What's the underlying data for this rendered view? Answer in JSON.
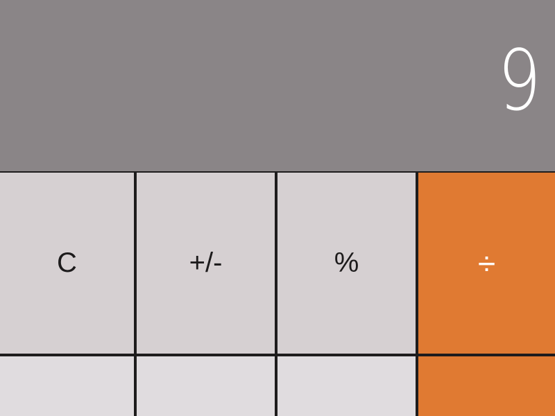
{
  "display": {
    "value": "9"
  },
  "keys": {
    "row1": {
      "clear": "C",
      "sign": "+/-",
      "percent": "%",
      "divide": "÷"
    }
  },
  "colors": {
    "display_bg": "#8a8587",
    "function_key": "#d6d0d2",
    "number_key": "#e0dcdf",
    "operator_key": "#e07a32",
    "divider": "#1e1c1d"
  }
}
